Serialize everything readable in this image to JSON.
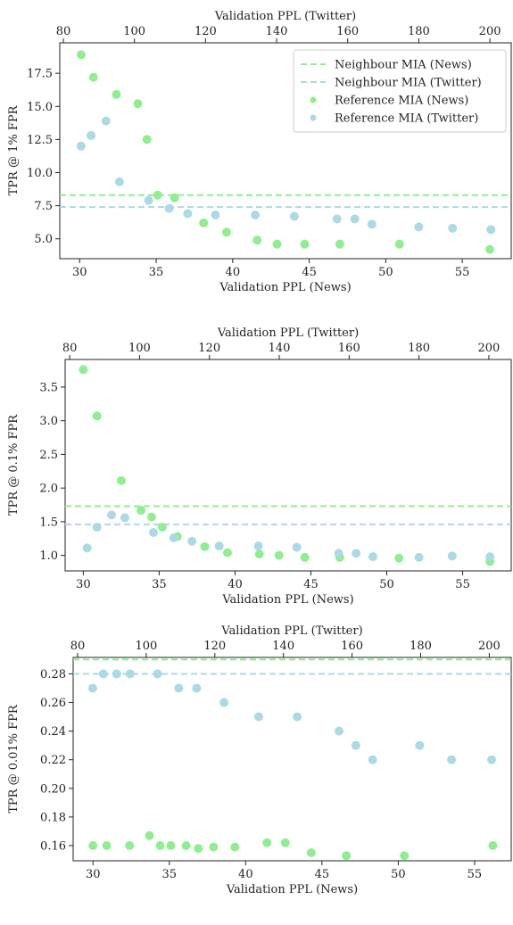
{
  "chart_data": [
    {
      "type": "scatter",
      "xlabel": "Validation PPL (News)",
      "x2label": "Validation PPL (Twitter)",
      "ylabel": "TPR @ 1% FPR",
      "xlim": [
        28.7,
        58.2
      ],
      "xticks": [
        30,
        35,
        40,
        45,
        50,
        55
      ],
      "x2lim": [
        79,
        206
      ],
      "x2ticks": [
        80,
        100,
        120,
        140,
        160,
        180,
        200
      ],
      "ylim": [
        3.5,
        19.8
      ],
      "yticks": [
        {
          "value": 5,
          "label": "5.0"
        },
        7.5,
        {
          "value": 10,
          "label": "10.0"
        },
        12.5,
        {
          "value": 15,
          "label": "15.0"
        },
        17.5
      ],
      "legend": "upper right",
      "hlines": [
        {
          "name": "Neighbour MIA (News)",
          "color": "#90ee90",
          "value": 8.3
        },
        {
          "name": "Neighbour MIA (Twitter)",
          "color": "#add8e6",
          "value": 7.4
        }
      ],
      "series": [
        {
          "name": "Reference MIA (News)",
          "color": "#90ee90",
          "axis": "x",
          "x": [
            30.1,
            30.9,
            32.4,
            33.8,
            34.4,
            35.1,
            36.2,
            38.1,
            39.6,
            41.6,
            42.9,
            44.7,
            47.0,
            50.9,
            56.8
          ],
          "values": [
            18.9,
            17.2,
            15.9,
            15.2,
            12.5,
            8.3,
            8.1,
            6.2,
            5.5,
            4.9,
            4.6,
            4.6,
            4.6,
            4.6,
            4.2
          ]
        },
        {
          "name": "Reference MIA (Twitter)",
          "color": "#add8e6",
          "axis": "x2",
          "x": [
            85,
            87.8,
            92,
            95.8,
            104,
            109.8,
            115,
            122.8,
            134,
            145,
            157,
            162,
            166.8,
            180,
            189.5,
            200.3
          ],
          "values": [
            12.0,
            12.8,
            13.9,
            9.3,
            7.9,
            7.3,
            6.9,
            6.8,
            6.8,
            6.7,
            6.5,
            6.5,
            6.1,
            5.9,
            5.8,
            5.7
          ]
        }
      ]
    },
    {
      "type": "scatter",
      "xlabel": "Validation PPL (News)",
      "x2label": "Validation PPL (Twitter)",
      "ylabel": "TPR @ 0.1% FPR",
      "xlim": [
        28.8,
        58.2
      ],
      "xticks": [
        30,
        35,
        40,
        45,
        50,
        55
      ],
      "x2lim": [
        78.7,
        206.4
      ],
      "x2ticks": [
        80,
        100,
        120,
        140,
        160,
        180,
        200
      ],
      "ylim": [
        0.77,
        3.91
      ],
      "yticks": [
        {
          "value": 1,
          "label": "1.0"
        },
        1.5,
        {
          "value": 2,
          "label": "2.0"
        },
        2.5,
        {
          "value": 3,
          "label": "3.0"
        },
        3.5
      ],
      "hlines": [
        {
          "color": "#90ee90",
          "value": 1.73
        },
        {
          "color": "#add8e6",
          "value": 1.46
        }
      ],
      "series": [
        {
          "color": "#90ee90",
          "axis": "x",
          "x": [
            30.0,
            30.9,
            32.5,
            33.8,
            34.5,
            35.2,
            36.2,
            38.0,
            39.5,
            41.6,
            42.9,
            44.6,
            46.9,
            50.8,
            56.8
          ],
          "values": [
            3.76,
            3.07,
            2.11,
            1.67,
            1.57,
            1.42,
            1.28,
            1.13,
            1.04,
            1.02,
            1.0,
            0.97,
            0.97,
            0.96,
            0.91
          ]
        },
        {
          "color": "#add8e6",
          "axis": "x2",
          "x": [
            85,
            87.8,
            92,
            95.8,
            104,
            109.8,
            115,
            122.8,
            134,
            145,
            157,
            162,
            166.8,
            180,
            189.5,
            200.3
          ],
          "values": [
            1.11,
            1.42,
            1.6,
            1.56,
            1.34,
            1.26,
            1.21,
            1.14,
            1.14,
            1.12,
            1.03,
            1.03,
            0.98,
            0.97,
            0.99,
            0.98
          ]
        }
      ]
    },
    {
      "type": "scatter",
      "xlabel": "Validation PPL (News)",
      "x2label": "Validation PPL (Twitter)",
      "ylabel": "TPR @ 0.01% FPR",
      "xlim": [
        28.7,
        57.4
      ],
      "xticks": [
        30,
        35,
        40,
        45,
        50,
        55
      ],
      "x2lim": [
        78.7,
        206.4
      ],
      "x2ticks": [
        80,
        100,
        120,
        140,
        160,
        180,
        200
      ],
      "ylim": [
        0.1494,
        0.2915
      ],
      "yticks": [
        0.16,
        0.18,
        {
          "value": 0.2,
          "label": "0.20"
        },
        0.22,
        0.24,
        0.26,
        0.28
      ],
      "hlines": [
        {
          "color": "#90ee90",
          "value": 0.29
        },
        {
          "color": "#add8e6",
          "value": 0.28
        }
      ],
      "series": [
        {
          "color": "#90ee90",
          "axis": "x",
          "x": [
            30.0,
            30.9,
            32.4,
            33.7,
            34.4,
            35.1,
            36.1,
            36.9,
            37.9,
            39.3,
            41.4,
            42.6,
            44.3,
            46.6,
            50.4,
            56.2
          ],
          "values": [
            0.16,
            0.16,
            0.16,
            0.167,
            0.16,
            0.16,
            0.16,
            0.158,
            0.159,
            0.159,
            0.162,
            0.162,
            0.155,
            0.153,
            0.153,
            0.16
          ]
        },
        {
          "color": "#add8e6",
          "axis": "x2",
          "x": [
            84.4,
            87.5,
            91.4,
            95.3,
            103.3,
            109.5,
            114.7,
            122.7,
            132.8,
            144,
            156.2,
            161.1,
            166,
            179.7,
            189,
            200.7
          ],
          "values": [
            0.27,
            0.28,
            0.28,
            0.28,
            0.28,
            0.27,
            0.27,
            0.26,
            0.25,
            0.25,
            0.24,
            0.23,
            0.22,
            0.23,
            0.22,
            0.22
          ]
        }
      ]
    }
  ]
}
